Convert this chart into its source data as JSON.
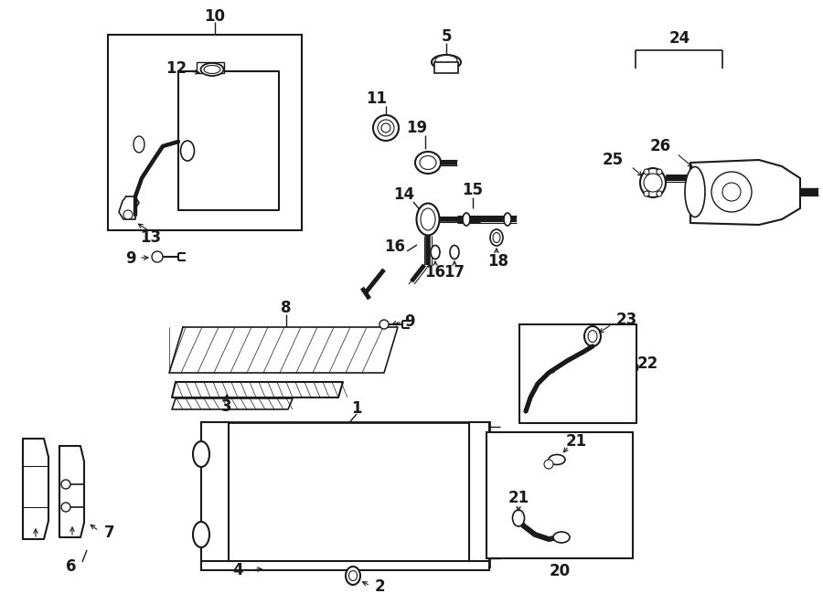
{
  "bg_color": "#ffffff",
  "line_color": "#1a1a1a",
  "fig_width": 9.0,
  "fig_height": 6.61,
  "dpi": 100,
  "label_size": 11
}
